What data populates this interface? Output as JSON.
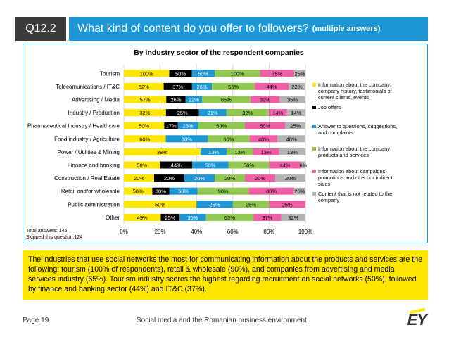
{
  "header": {
    "question_id": "Q12.2",
    "title": "What kind of content do you offer to followers?",
    "title_note": "(multiple answers)"
  },
  "chart_data": {
    "type": "bar",
    "orientation": "horizontal",
    "stacking": "percent",
    "title": "By industry sector of the respondent companies",
    "categories": [
      "Tourism",
      "Telecomunications / IT&C",
      "Advertising / Media",
      "Industry / Production",
      "Pharmaceutical Industry / Healthcare",
      "Food industry / Agriculture",
      "Power / Utilities & Mining",
      "Finance and banking",
      "Construction / Real Estate",
      "Retail and/or wholesale",
      "Public administration",
      "Other"
    ],
    "series": [
      {
        "name": "Information about the company: company history, testimonials of current clients, events",
        "color": "#ffe600",
        "values": [
          100,
          52,
          57,
          32,
          50,
          60,
          38,
          50,
          20,
          50,
          50,
          49
        ]
      },
      {
        "name": "Job offers",
        "color": "#000000",
        "values": [
          50,
          37,
          26,
          25,
          17,
          null,
          null,
          44,
          20,
          30,
          null,
          25
        ]
      },
      {
        "name": "Answer to questions, suggestions, and complaints",
        "color": "#1c96d4",
        "values": [
          50,
          26,
          22,
          21,
          25,
          60,
          13,
          50,
          20,
          50,
          25,
          35
        ]
      },
      {
        "name": "Information about the company products and services",
        "color": "#91c852",
        "values": [
          100,
          56,
          65,
          32,
          58,
          60,
          13,
          56,
          20,
          90,
          25,
          63
        ]
      },
      {
        "name": "Information about campaigns, promotions and direct or indirect sales",
        "color": "#f05fa6",
        "values": [
          75,
          44,
          39,
          14,
          50,
          40,
          13,
          44,
          20,
          80,
          25,
          37
        ]
      },
      {
        "name": "Content that is not related to the company",
        "color": "#b3b3b3",
        "values": [
          25,
          22,
          35,
          14,
          25,
          40,
          13,
          6,
          20,
          20,
          null,
          32
        ]
      }
    ],
    "value_labels": [
      [
        "100%",
        "50%",
        "50%",
        "100%",
        "75%",
        "25%"
      ],
      [
        "52%",
        "37%",
        "26%",
        "56%",
        "44%",
        "22%"
      ],
      [
        "57%",
        "26%",
        "22%",
        "65%",
        "39%",
        "35%"
      ],
      [
        "32%",
        "25%",
        "21%",
        "32%",
        "14%",
        "14%"
      ],
      [
        "50%",
        "17%",
        "25%",
        "58%",
        "50%",
        "25%"
      ],
      [
        "60%",
        "",
        "60%",
        "60%",
        "40%",
        "40%"
      ],
      [
        "38%",
        "",
        "13%",
        "13%",
        "13%",
        "13%"
      ],
      [
        "50%",
        "44%",
        "50%",
        "56%",
        "44%",
        "6%"
      ],
      [
        "20%",
        "20%",
        "20%",
        "20%",
        "20%",
        "20%"
      ],
      [
        "50%",
        "30%",
        "50%",
        "90%",
        "80%",
        "20%"
      ],
      [
        "50%",
        "",
        "25%",
        "25%",
        "25%",
        ""
      ],
      [
        "49%",
        "25%",
        "35%",
        "63%",
        "37%",
        "32%"
      ]
    ],
    "x_ticks": [
      "0%",
      "20%",
      "40%",
      "60%",
      "80%",
      "100%"
    ],
    "xlim": [
      0,
      100
    ],
    "grid": true,
    "legend_position": "right"
  },
  "totals": {
    "answers": "Total answers: 145",
    "skipped": "Skipped this question:124"
  },
  "summary": "The industries that use social networks the most for communicating information about the products and services are the following: tourism (100% of respondents), retail & wholesale (90%), and companies from advertising and media services industry (65%). Tourism industry scores the highest regarding recruitment on social networks (50%), followed by finance and banking sector (44%) and IT&C (37%).",
  "footer": {
    "page": "Page 19",
    "text": "Social media and the Romanian business environment",
    "logo": "EY"
  }
}
